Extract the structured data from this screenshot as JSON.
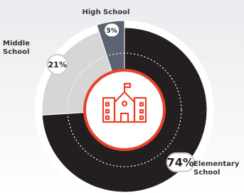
{
  "chart_data": {
    "type": "pie",
    "categories": [
      "Elementary School",
      "Middle School",
      "High School"
    ],
    "values": [
      74,
      21,
      5
    ],
    "value_labels": [
      "74%",
      "21%",
      "5%"
    ],
    "colors": [
      "#231f20",
      "#d6d6d6",
      "#5b6272"
    ]
  }
}
